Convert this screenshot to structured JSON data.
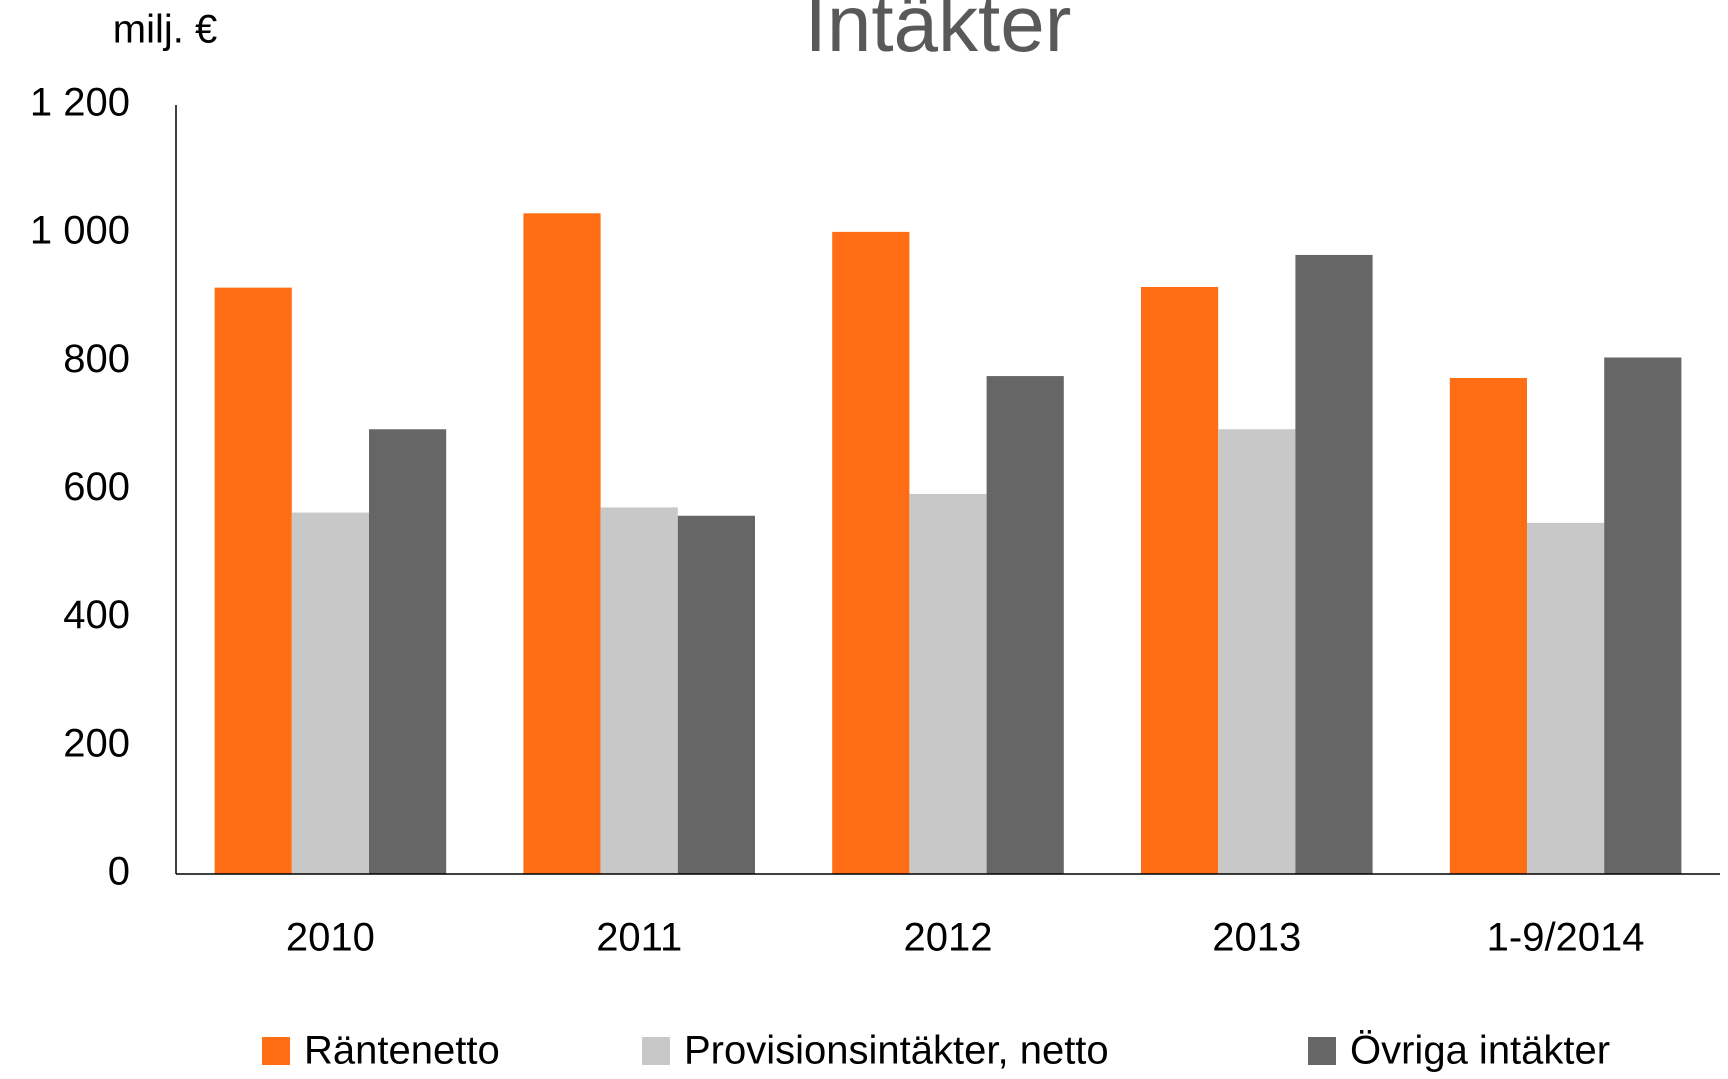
{
  "chart_data": {
    "type": "bar",
    "title": "Intäkter",
    "y_axis_label": "milj. €",
    "categories": [
      "2010",
      "2011",
      "2012",
      "2013",
      "1-9/2014"
    ],
    "series": [
      {
        "name": "Räntenetto",
        "color": "#ff6e14",
        "values": [
          915,
          1031,
          1002,
          916,
          774
        ]
      },
      {
        "name": "Provisionsintäkter, netto",
        "color": "#c8c8c8",
        "values": [
          564,
          572,
          593,
          694,
          548
        ]
      },
      {
        "name": "Övriga intäkter",
        "color": "#666666",
        "values": [
          694,
          559,
          777,
          966,
          806
        ]
      }
    ],
    "ylim": [
      0,
      1200
    ],
    "yticks": [
      0,
      200,
      400,
      600,
      800,
      {
        "value": 1000,
        "label": "1 000"
      },
      {
        "value": 1200,
        "label": "1 200"
      }
    ],
    "grid": false
  }
}
